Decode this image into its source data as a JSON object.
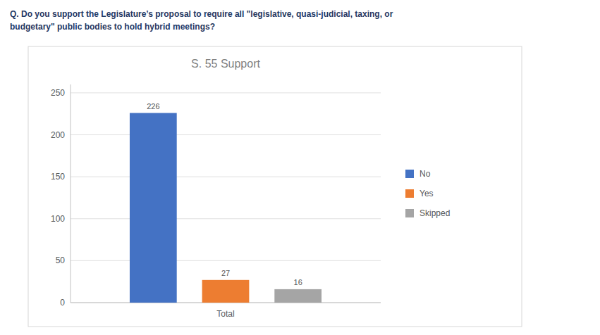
{
  "chart_data": {
    "type": "bar",
    "title": "S. 55 Support",
    "annotations": [
      "Q. Do you support the Legislature’s proposal to require all \"legislative, quasi-judicial, taxing, or",
      "budgetary\" public bodies to hold hybrid meetings?"
    ],
    "categories": [
      "Total"
    ],
    "series": [
      {
        "name": "No",
        "values": [
          226
        ],
        "color": "#4472C4"
      },
      {
        "name": "Yes",
        "values": [
          27
        ],
        "color": "#ED7D31"
      },
      {
        "name": "Skipped",
        "values": [
          16
        ],
        "color": "#A5A5A5"
      }
    ],
    "ylim": [
      0,
      260
    ],
    "yticks": [
      0,
      50,
      100,
      150,
      200,
      250
    ],
    "grid": true,
    "legend": "right",
    "data_labels": true
  }
}
